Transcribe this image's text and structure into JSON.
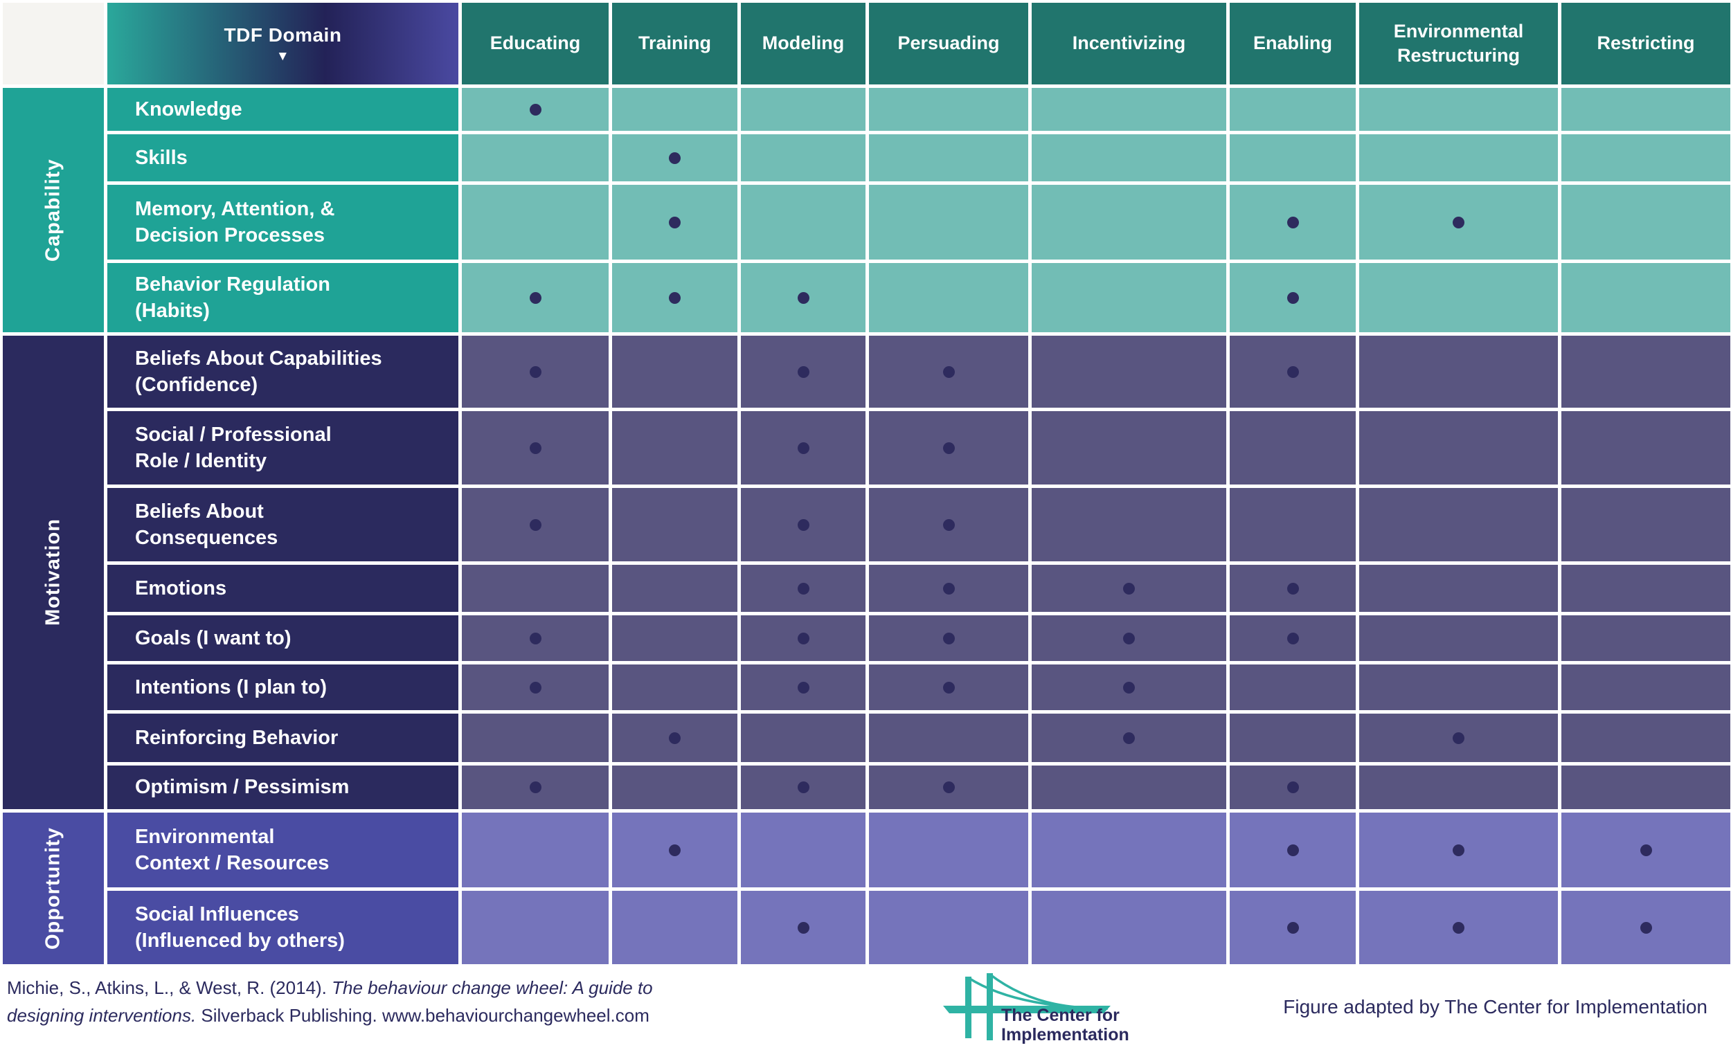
{
  "header": {
    "tdf_label": "TDF Domain",
    "sort_arrow": "▼",
    "columns": [
      "Educating",
      "Training",
      "Modeling",
      "Persuading",
      "Incentivizing",
      "Enabling",
      "Environmental\nRestructuring",
      "Restricting"
    ]
  },
  "sections": [
    {
      "name": "Capability",
      "colors": {
        "band": "#1fa396",
        "cell": "#72bdb5"
      },
      "rows": [
        {
          "label": "Knowledge",
          "dots": [
            0
          ]
        },
        {
          "label": "Skills",
          "dots": [
            1
          ]
        },
        {
          "label": "Memory, Attention, &\nDecision Processes",
          "dots": [
            1,
            5,
            6
          ]
        },
        {
          "label": "Behavior Regulation\n(Habits)",
          "dots": [
            0,
            1,
            2,
            5
          ]
        }
      ]
    },
    {
      "name": "Motivation",
      "colors": {
        "band": "#2b2a5e",
        "cell": "#595580"
      },
      "rows": [
        {
          "label": "Beliefs About Capabilities\n(Confidence)",
          "dots": [
            0,
            2,
            3,
            5
          ]
        },
        {
          "label": "Social / Professional\nRole / Identity",
          "dots": [
            0,
            2,
            3
          ]
        },
        {
          "label": "Beliefs About\nConsequences",
          "dots": [
            0,
            2,
            3
          ]
        },
        {
          "label": "Emotions",
          "dots": [
            2,
            3,
            4,
            5
          ]
        },
        {
          "label": "Goals (I want to)",
          "dots": [
            0,
            2,
            3,
            4,
            5
          ]
        },
        {
          "label": "Intentions (I plan to)",
          "dots": [
            0,
            2,
            3,
            4
          ]
        },
        {
          "label": "Reinforcing Behavior",
          "dots": [
            1,
            4,
            6
          ]
        },
        {
          "label": "Optimism / Pessimism",
          "dots": [
            0,
            2,
            3,
            5
          ]
        }
      ]
    },
    {
      "name": "Opportunity",
      "colors": {
        "band": "#4a4ca3",
        "cell": "#7574bb"
      },
      "rows": [
        {
          "label": "Environmental\nContext / Resources",
          "dots": [
            1,
            5,
            6,
            7
          ]
        },
        {
          "label": "Social Influences\n(Influenced by others)",
          "dots": [
            2,
            5,
            6,
            7
          ]
        }
      ]
    }
  ],
  "colors": {
    "header_teal": "#21756d",
    "gradient_left": "#2aa89b",
    "gradient_mid": "#232257",
    "gradient_right": "#4a49a1",
    "dot": "#2e2b5e",
    "corner": "#f5f4f1",
    "text_navy": "#2b2a5e",
    "logo_teal": "#2fb3a4"
  },
  "footer": {
    "citation_part1": "Michie, S., Atkins, L., & West, R. (2014). ",
    "citation_italic1": "The behaviour change wheel: A guide to",
    "citation_italic2": "designing interventions.",
    "citation_part2": " Silverback Publishing. www.behaviourchangewheel.com",
    "logo_line1": "The Center for",
    "logo_line2": "Implementation",
    "credit": "Figure adapted by The Center for Implementation"
  }
}
